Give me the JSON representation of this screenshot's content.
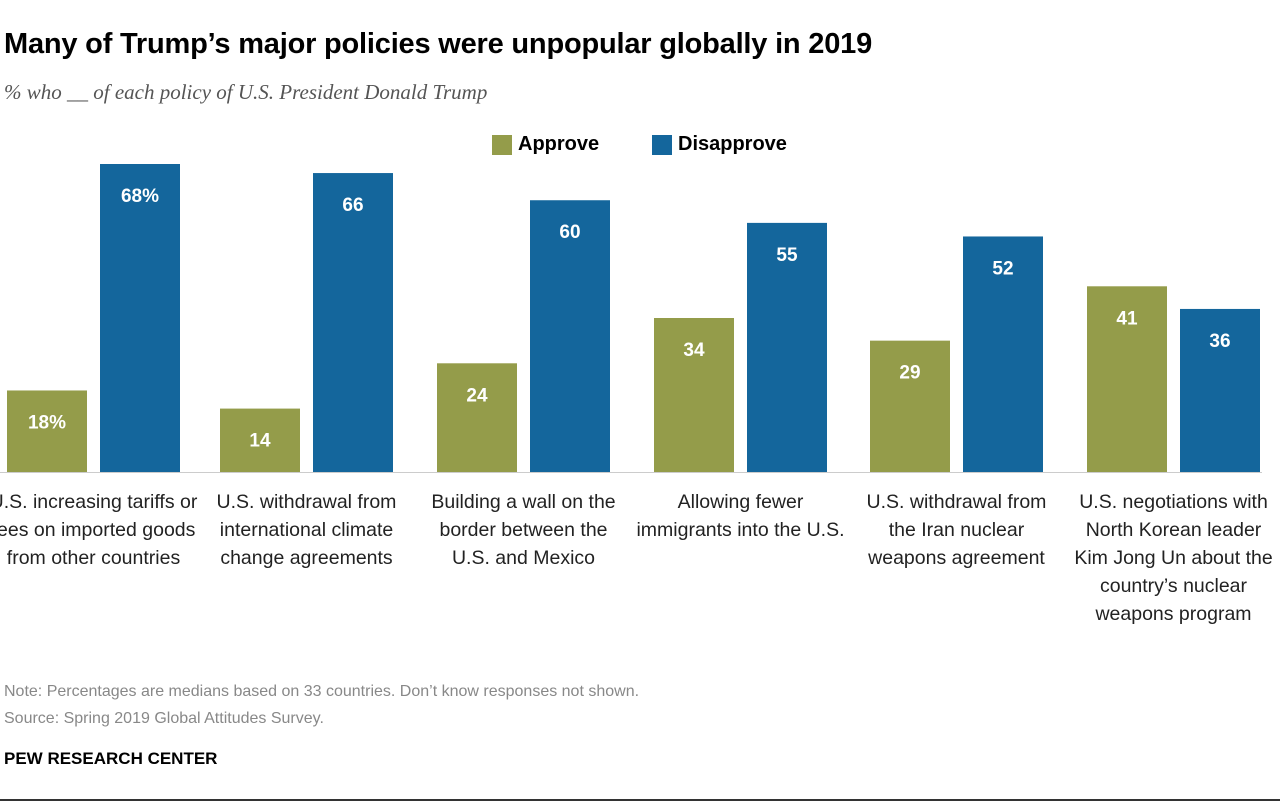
{
  "chart_data": {
    "type": "bar",
    "title": "Many of Trump’s major policies were unpopular globally in 2019",
    "subtitle": "% who __ of each policy of U.S. President Donald Trump",
    "categories": [
      "U.S. increasing tariffs or fees on imported goods from other countries",
      "U.S. withdrawal from international climate change agreements",
      "Building a wall on the border between the U.S. and Mexico",
      "Allowing fewer immigrants into the U.S.",
      "U.S. withdrawal from the Iran nuclear weapons agreement",
      "U.S. negotiations with North Korean leader Kim Jong Un about the country’s nuclear weapons program"
    ],
    "series": [
      {
        "name": "Approve",
        "color": "#949c4a",
        "values": [
          18,
          14,
          24,
          34,
          29,
          41
        ],
        "labels": [
          "18%",
          "14",
          "24",
          "34",
          "29",
          "41"
        ]
      },
      {
        "name": "Disapprove",
        "color": "#14669c",
        "values": [
          68,
          66,
          60,
          55,
          52,
          36
        ],
        "labels": [
          "68%",
          "66",
          "60",
          "55",
          "52",
          "36"
        ]
      }
    ],
    "ylim": [
      0,
      70
    ],
    "grid": false,
    "legend": "top-center",
    "note": "Note: Percentages are medians based on 33 countries. Don’t know responses not shown.",
    "source": "Source: Spring 2019 Global Attitudes Survey.",
    "credit": "PEW RESEARCH CENTER"
  }
}
